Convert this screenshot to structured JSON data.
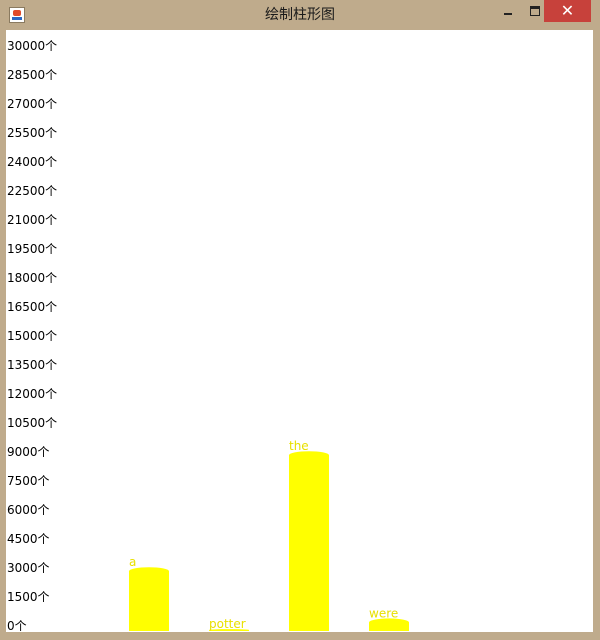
{
  "window": {
    "title": "绘制柱形图",
    "icon": "java-app-icon",
    "controls": {
      "minimize": "minimize-icon",
      "maximize": "maximize-icon",
      "close": "✕"
    }
  },
  "colors": {
    "bar": "#ffff00",
    "bar_label": "#e8e000",
    "tick_label": "#000000",
    "background": "#ffffff"
  },
  "chart_data": {
    "type": "bar",
    "title": "",
    "xlabel": "",
    "ylabel": "",
    "ylim": [
      0,
      30000
    ],
    "yticks": [
      0,
      1500,
      3000,
      4500,
      6000,
      7500,
      9000,
      10500,
      12000,
      13500,
      15000,
      16500,
      18000,
      19500,
      21000,
      22500,
      24000,
      25500,
      27000,
      28500,
      30000
    ],
    "ytick_labels": [
      "0个",
      "1500个",
      "3000个",
      "4500个",
      "6000个",
      "7500个",
      "9000个",
      "10500个",
      "12000个",
      "13500个",
      "15000个",
      "16500个",
      "18000个",
      "19500个",
      "21000个",
      "22500个",
      "24000个",
      "25500个",
      "27000个",
      "28500个",
      "30000个"
    ],
    "categories": [
      "a",
      "potter",
      "the",
      "were"
    ],
    "values": [
      3300,
      100,
      9300,
      650
    ],
    "grid": false,
    "legend": "none"
  }
}
